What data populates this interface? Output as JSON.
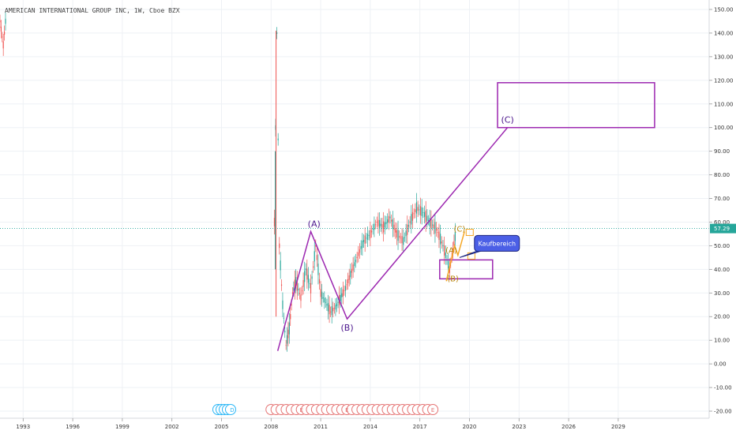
{
  "chart_title": "AMERICAN INTERNATIONAL GROUP INC, 1W, Cboe BZX",
  "chart_data": {
    "type": "line",
    "title": "AMERICAN INTERNATIONAL GROUP INC, 1W, Cboe BZX",
    "xlabel": "",
    "ylabel": "",
    "ylim": [
      -23,
      154
    ],
    "xlim": [
      1991.6,
      2034.5
    ],
    "x_ticks": [
      "1993",
      "1996",
      "1999",
      "2002",
      "2005",
      "2008",
      "2011",
      "2014",
      "2017",
      "2020",
      "2023",
      "2026",
      "2029"
    ],
    "y_ticks": [
      "150.00",
      "140.00",
      "130.00",
      "120.00",
      "110.00",
      "100.00",
      "90.00",
      "80.00",
      "70.00",
      "60.00",
      "50.00",
      "40.00",
      "30.00",
      "20.00",
      "10.00",
      "0.00",
      "-10.00",
      "-20.00"
    ],
    "grid": true,
    "last_price": {
      "value": 57.29,
      "label": "57.29",
      "color": "#26a69a"
    },
    "price_series": {
      "name": "",
      "x": [
        1991.6,
        1991.8,
        1992.0,
        2008.2,
        2008.35,
        2008.5,
        2008.7,
        2008.9,
        2009.1,
        2009.3,
        2009.5,
        2009.8,
        2010.1,
        2010.4,
        2010.7,
        2011.0,
        2011.3,
        2011.6,
        2011.9,
        2012.2,
        2012.5,
        2012.8,
        2013.2,
        2013.6,
        2014.0,
        2014.4,
        2014.8,
        2015.2,
        2015.6,
        2016.0,
        2016.4,
        2016.8,
        2017.2,
        2017.6,
        2018.0,
        2018.4,
        2018.8,
        2019.0,
        2019.2
      ],
      "y": [
        145,
        135,
        150,
        60,
        140,
        50,
        25,
        8,
        15,
        30,
        35,
        28,
        40,
        32,
        50,
        30,
        26,
        22,
        24,
        28,
        32,
        38,
        45,
        52,
        55,
        60,
        58,
        62,
        55,
        52,
        60,
        66,
        64,
        60,
        57,
        50,
        40,
        48,
        57
      ]
    },
    "wave_labels": [
      {
        "text": "(A)",
        "x": 2010.6,
        "y": 58
      },
      {
        "text": "(B)",
        "x": 2012.6,
        "y": 14
      },
      {
        "text": "(C)",
        "x": 2022.3,
        "y": 102
      }
    ],
    "sub_wave_labels": [
      {
        "text": "(C)",
        "x": 2019.4,
        "y": 56
      },
      {
        "text": "(A)",
        "x": 2018.9,
        "y": 47
      },
      {
        "text": "(B)",
        "x": 2019.0,
        "y": 35
      }
    ],
    "wave_path": [
      [
        2008.4,
        5.5
      ],
      [
        2010.4,
        56
      ],
      [
        2012.6,
        19
      ],
      [
        2022.3,
        100
      ]
    ],
    "sub_wave_path": [
      [
        2018.6,
        35
      ],
      [
        2019.1,
        50
      ],
      [
        2019.3,
        46
      ],
      [
        2019.7,
        56
      ]
    ],
    "target_box": {
      "x1": 2021.7,
      "x2": 2031.2,
      "y1": 100,
      "y2": 119
    },
    "buy_box": {
      "x1": 2018.2,
      "x2": 2021.4,
      "y1": 36,
      "y2": 44
    },
    "callout": {
      "text": "Kaufbereich",
      "x": 2020.3,
      "y": 51
    },
    "colors": {
      "wave": "#9c27b0",
      "wave_text": "#4a148c",
      "sub_wave": "#f5a623",
      "callout_bg": "#4b5fe6",
      "callout_border": "#1a237e",
      "grid": "#eef1f5",
      "candle_up": "#26a69a",
      "candle_down": "#ef5350"
    }
  },
  "events": {
    "dividend_count": 5,
    "earnings_count": 33,
    "dividend_label": "D",
    "earnings_label": "E"
  }
}
